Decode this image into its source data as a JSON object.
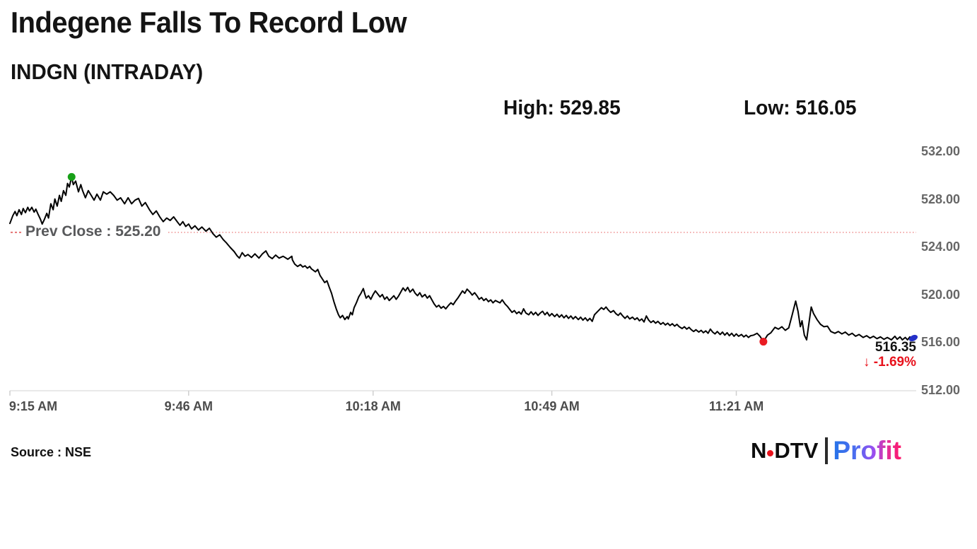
{
  "header": {
    "title": "Indegene Falls To Record Low",
    "subtitle": "INDGN (INTRADAY)",
    "high_label": "High: 529.85",
    "low_label": "Low: 516.05"
  },
  "chart_data": {
    "type": "line",
    "symbol": "INDGN",
    "session": "INTRADAY",
    "high": 529.85,
    "low": 516.05,
    "prev_close": 525.2,
    "prev_close_label": "Prev Close : 525.20",
    "last_price": 516.35,
    "last_price_label": "516.35",
    "change_label": "↓ -1.69%",
    "change_pct": -1.69,
    "line_color": "#000000",
    "prev_close_line_color": "#ee8f8f",
    "high_dot_color": "#18a018",
    "low_dot_color": "#e91c23",
    "last_marker_color": "#2430c8",
    "change_color": "#e8121c",
    "ylim": [
      512,
      532
    ],
    "y_axis": [
      {
        "value": 532,
        "label": "532.00"
      },
      {
        "value": 528,
        "label": "528.00"
      },
      {
        "value": 524,
        "label": "524.00"
      },
      {
        "value": 520,
        "label": "520.00"
      },
      {
        "value": 516,
        "label": "516.00"
      },
      {
        "value": 512,
        "label": "512.00"
      }
    ],
    "x_axis": [
      {
        "minute": 0,
        "label": "9:15 AM"
      },
      {
        "minute": 31,
        "label": "9:46 AM"
      },
      {
        "minute": 63,
        "label": "10:18 AM"
      },
      {
        "minute": 94,
        "label": "10:49 AM"
      },
      {
        "minute": 126,
        "label": "11:21 AM"
      }
    ],
    "x_minutes_range": [
      0,
      157
    ],
    "markers": {
      "high": {
        "minute": 10.7,
        "price": 529.85
      },
      "low": {
        "minute": 130.7,
        "price": 516.05
      },
      "last": {
        "minute": 156.7,
        "price": 516.35
      }
    },
    "series": [
      [
        0,
        525.95
      ],
      [
        0.5,
        526.6
      ],
      [
        0.9,
        526.95
      ],
      [
        1.2,
        526.6
      ],
      [
        1.6,
        527.1
      ],
      [
        2,
        526.7
      ],
      [
        2.3,
        527.2
      ],
      [
        2.7,
        526.85
      ],
      [
        3.1,
        527.3
      ],
      [
        3.4,
        527
      ],
      [
        3.8,
        527.3
      ],
      [
        4.2,
        526.9
      ],
      [
        4.5,
        527.15
      ],
      [
        4.9,
        526.7
      ],
      [
        5.3,
        526.3
      ],
      [
        5.6,
        525.9
      ],
      [
        6,
        526.3
      ],
      [
        6.4,
        526.8
      ],
      [
        6.7,
        526.4
      ],
      [
        7.1,
        527.6
      ],
      [
        7.5,
        527.1
      ],
      [
        7.8,
        528
      ],
      [
        8.2,
        527.4
      ],
      [
        8.6,
        528.3
      ],
      [
        8.9,
        527.8
      ],
      [
        9.3,
        528.7
      ],
      [
        9.7,
        528.3
      ],
      [
        10,
        529.3
      ],
      [
        10.3,
        529
      ],
      [
        10.7,
        529.85
      ],
      [
        11,
        529.2
      ],
      [
        11.4,
        529.5
      ],
      [
        11.9,
        528.6
      ],
      [
        12.3,
        529.2
      ],
      [
        12.6,
        528.7
      ],
      [
        13.1,
        528.1
      ],
      [
        13.6,
        528.7
      ],
      [
        14.1,
        528.3
      ],
      [
        14.6,
        527.9
      ],
      [
        15.1,
        528.4
      ],
      [
        15.7,
        527.9
      ],
      [
        16.2,
        528.6
      ],
      [
        16.8,
        528.4
      ],
      [
        17.4,
        528.6
      ],
      [
        18,
        528.3
      ],
      [
        18.6,
        527.9
      ],
      [
        19.2,
        528.1
      ],
      [
        19.9,
        527.6
      ],
      [
        20.5,
        528.1
      ],
      [
        21.1,
        527.6
      ],
      [
        21.7,
        527.9
      ],
      [
        22.3,
        528.05
      ],
      [
        22.9,
        527.4
      ],
      [
        23.5,
        527.7
      ],
      [
        24.2,
        527.1
      ],
      [
        24.8,
        526.7
      ],
      [
        25.4,
        527
      ],
      [
        26,
        526.5
      ],
      [
        26.6,
        526.1
      ],
      [
        27.2,
        526.4
      ],
      [
        27.8,
        526.2
      ],
      [
        28.4,
        526.5
      ],
      [
        29.1,
        526.05
      ],
      [
        29.5,
        525.8
      ],
      [
        30,
        526.1
      ],
      [
        30.5,
        525.7
      ],
      [
        31,
        525.9
      ],
      [
        31.5,
        525.5
      ],
      [
        32.1,
        525.75
      ],
      [
        32.7,
        525.4
      ],
      [
        33.3,
        525.65
      ],
      [
        34,
        525.3
      ],
      [
        34.6,
        525.55
      ],
      [
        35.2,
        525.1
      ],
      [
        35.8,
        524.8
      ],
      [
        36.4,
        525
      ],
      [
        37,
        524.6
      ],
      [
        37.6,
        524.3
      ],
      [
        38.2,
        523.95
      ],
      [
        38.9,
        523.6
      ],
      [
        39.4,
        523.25
      ],
      [
        39.8,
        523.05
      ],
      [
        40.3,
        523.5
      ],
      [
        40.8,
        523.2
      ],
      [
        41.3,
        523.35
      ],
      [
        41.9,
        523.1
      ],
      [
        42.5,
        523.4
      ],
      [
        43.2,
        523.05
      ],
      [
        43.8,
        523.4
      ],
      [
        44.4,
        523.65
      ],
      [
        44.9,
        523.2
      ],
      [
        45.5,
        523
      ],
      [
        46.1,
        523.3
      ],
      [
        46.7,
        523.05
      ],
      [
        47.4,
        523.2
      ],
      [
        48.2,
        522.95
      ],
      [
        48.9,
        523.2
      ],
      [
        49,
        522.9
      ],
      [
        49.4,
        522.55
      ],
      [
        49.9,
        522.35
      ],
      [
        50.4,
        522.5
      ],
      [
        50.8,
        522.3
      ],
      [
        51.2,
        522.4
      ],
      [
        51.6,
        522.2
      ],
      [
        52,
        522.35
      ],
      [
        52.3,
        522.15
      ],
      [
        53,
        521.9
      ],
      [
        53.4,
        522.1
      ],
      [
        53.8,
        521.6
      ],
      [
        54.2,
        521.3
      ],
      [
        54.6,
        521
      ],
      [
        55,
        521.15
      ],
      [
        55.4,
        520.6
      ],
      [
        55.8,
        520.1
      ],
      [
        56.2,
        519.4
      ],
      [
        56.6,
        518.8
      ],
      [
        57,
        518.3
      ],
      [
        57.3,
        518.05
      ],
      [
        57.7,
        518.25
      ],
      [
        58.1,
        517.9
      ],
      [
        58.5,
        518.15
      ],
      [
        58.7,
        517.95
      ],
      [
        59.1,
        518.5
      ],
      [
        59.4,
        518.3
      ],
      [
        59.7,
        518.9
      ],
      [
        60.1,
        519.3
      ],
      [
        60.5,
        519.8
      ],
      [
        60.9,
        520.1
      ],
      [
        61.3,
        520.5
      ],
      [
        61.6,
        520
      ],
      [
        61.8,
        519.7
      ],
      [
        62.2,
        519.9
      ],
      [
        62.6,
        519.6
      ],
      [
        63,
        520
      ],
      [
        63.4,
        520.3
      ],
      [
        63.8,
        520.05
      ],
      [
        64.2,
        519.8
      ],
      [
        64.6,
        520
      ],
      [
        65,
        519.6
      ],
      [
        65.4,
        519.8
      ],
      [
        65.8,
        519.5
      ],
      [
        66.2,
        519.7
      ],
      [
        66.6,
        519.9
      ],
      [
        67,
        519.6
      ],
      [
        67.4,
        519.85
      ],
      [
        67.8,
        520.2
      ],
      [
        68.2,
        520.55
      ],
      [
        68.6,
        520.3
      ],
      [
        69,
        520.6
      ],
      [
        69.4,
        520.2
      ],
      [
        69.9,
        520.45
      ],
      [
        70.3,
        520.1
      ],
      [
        70.7,
        519.9
      ],
      [
        71.1,
        520.15
      ],
      [
        71.5,
        519.8
      ],
      [
        72,
        520
      ],
      [
        72.4,
        519.7
      ],
      [
        72.8,
        519.9
      ],
      [
        73.2,
        519.55
      ],
      [
        73.6,
        519.2
      ],
      [
        74,
        518.95
      ],
      [
        74.4,
        519.1
      ],
      [
        74.8,
        518.85
      ],
      [
        75.2,
        519
      ],
      [
        75.6,
        518.8
      ],
      [
        76.1,
        519.1
      ],
      [
        76.5,
        519.3
      ],
      [
        76.9,
        519.15
      ],
      [
        77.3,
        519.45
      ],
      [
        77.7,
        519.7
      ],
      [
        78.1,
        520
      ],
      [
        78.5,
        520.3
      ],
      [
        78.9,
        520.1
      ],
      [
        79.3,
        520.45
      ],
      [
        79.8,
        520.2
      ],
      [
        80.2,
        519.95
      ],
      [
        80.6,
        520.15
      ],
      [
        81,
        519.9
      ],
      [
        81.4,
        519.6
      ],
      [
        81.8,
        519.75
      ],
      [
        82.2,
        519.5
      ],
      [
        82.6,
        519.65
      ],
      [
        83,
        519.4
      ],
      [
        83.4,
        519.55
      ],
      [
        83.8,
        519.3
      ],
      [
        84.2,
        519.5
      ],
      [
        85,
        519.3
      ],
      [
        85.4,
        519.55
      ],
      [
        85.9,
        519.2
      ],
      [
        86.3,
        519
      ],
      [
        86.7,
        518.75
      ],
      [
        87.1,
        518.5
      ],
      [
        87.5,
        518.65
      ],
      [
        87.9,
        518.4
      ],
      [
        88.3,
        518.55
      ],
      [
        88.7,
        518.35
      ],
      [
        89.1,
        518.8
      ],
      [
        89.5,
        518.45
      ],
      [
        90,
        518.3
      ],
      [
        90.4,
        518.55
      ],
      [
        90.8,
        518.3
      ],
      [
        91.2,
        518.5
      ],
      [
        91.6,
        518.25
      ],
      [
        92,
        518.45
      ],
      [
        92.4,
        518.6
      ],
      [
        92.8,
        518.3
      ],
      [
        93.2,
        518.5
      ],
      [
        93.6,
        518.2
      ],
      [
        94,
        518.4
      ],
      [
        94.5,
        518.15
      ],
      [
        94.9,
        518.35
      ],
      [
        95.3,
        518.1
      ],
      [
        95.7,
        518.3
      ],
      [
        96.1,
        518.05
      ],
      [
        96.5,
        518.25
      ],
      [
        96.9,
        518
      ],
      [
        97.3,
        518.2
      ],
      [
        97.7,
        517.95
      ],
      [
        98.1,
        518.15
      ],
      [
        98.6,
        517.9
      ],
      [
        99,
        518.1
      ],
      [
        99.4,
        517.85
      ],
      [
        99.8,
        518.05
      ],
      [
        100.2,
        517.8
      ],
      [
        100.6,
        518
      ],
      [
        101,
        517.75
      ],
      [
        101.4,
        518.3
      ],
      [
        101.8,
        518.5
      ],
      [
        102.2,
        518.7
      ],
      [
        102.6,
        518.9
      ],
      [
        103,
        518.75
      ],
      [
        103.4,
        518.95
      ],
      [
        103.8,
        518.7
      ],
      [
        104.2,
        518.5
      ],
      [
        104.7,
        518.65
      ],
      [
        105.1,
        518.4
      ],
      [
        105.5,
        518.25
      ],
      [
        105.9,
        518.45
      ],
      [
        106.3,
        518.2
      ],
      [
        106.7,
        518
      ],
      [
        107.1,
        518.2
      ],
      [
        107.5,
        517.95
      ],
      [
        108,
        518.1
      ],
      [
        108.4,
        517.9
      ],
      [
        108.8,
        518.05
      ],
      [
        109.2,
        517.8
      ],
      [
        109.6,
        517.95
      ],
      [
        110,
        517.7
      ],
      [
        110.4,
        518.2
      ],
      [
        110.8,
        517.85
      ],
      [
        111.2,
        517.65
      ],
      [
        111.6,
        517.8
      ],
      [
        112,
        517.6
      ],
      [
        112.4,
        517.75
      ],
      [
        112.9,
        517.5
      ],
      [
        113.3,
        517.65
      ],
      [
        113.7,
        517.45
      ],
      [
        114.1,
        517.6
      ],
      [
        114.5,
        517.4
      ],
      [
        114.9,
        517.55
      ],
      [
        115.3,
        517.35
      ],
      [
        115.7,
        517.5
      ],
      [
        116.1,
        517.3
      ],
      [
        116.6,
        517.15
      ],
      [
        117,
        517.3
      ],
      [
        117.4,
        517.1
      ],
      [
        117.8,
        517.25
      ],
      [
        118.2,
        517.05
      ],
      [
        118.6,
        516.9
      ],
      [
        119,
        517.05
      ],
      [
        119.5,
        516.85
      ],
      [
        119.9,
        517
      ],
      [
        120.3,
        516.8
      ],
      [
        120.7,
        516.95
      ],
      [
        121.1,
        516.75
      ],
      [
        121.5,
        517.1
      ],
      [
        121.9,
        516.85
      ],
      [
        122.3,
        516.7
      ],
      [
        122.7,
        516.9
      ],
      [
        123.2,
        516.65
      ],
      [
        123.6,
        516.85
      ],
      [
        124,
        516.6
      ],
      [
        124.4,
        516.8
      ],
      [
        124.8,
        516.55
      ],
      [
        125.2,
        516.75
      ],
      [
        125.6,
        516.5
      ],
      [
        126,
        516.7
      ],
      [
        126.4,
        516.5
      ],
      [
        126.9,
        516.65
      ],
      [
        127.3,
        516.45
      ],
      [
        127.7,
        516.6
      ],
      [
        128.1,
        516.4
      ],
      [
        128.5,
        516.55
      ],
      [
        129,
        516.6
      ],
      [
        129.6,
        516.75
      ],
      [
        130.1,
        516.5
      ],
      [
        130.7,
        516.05
      ],
      [
        131.4,
        516.6
      ],
      [
        132,
        516.8
      ],
      [
        132.7,
        517.25
      ],
      [
        133.3,
        517.1
      ],
      [
        133.9,
        517.3
      ],
      [
        134.5,
        517
      ],
      [
        135.1,
        517.2
      ],
      [
        135.7,
        518.3
      ],
      [
        136.3,
        519.45
      ],
      [
        136.7,
        518.6
      ],
      [
        137.1,
        517.3
      ],
      [
        137.4,
        517.8
      ],
      [
        137.8,
        516.6
      ],
      [
        138.2,
        516.2
      ],
      [
        138.6,
        517.6
      ],
      [
        139,
        518.95
      ],
      [
        139.4,
        518.4
      ],
      [
        140,
        517.9
      ],
      [
        140.6,
        517.5
      ],
      [
        141.2,
        517.3
      ],
      [
        141.8,
        517.35
      ],
      [
        142.4,
        516.9
      ],
      [
        143.1,
        516.75
      ],
      [
        143.7,
        516.9
      ],
      [
        144.3,
        516.7
      ],
      [
        144.9,
        516.85
      ],
      [
        145.5,
        516.6
      ],
      [
        146.1,
        516.75
      ],
      [
        146.7,
        516.5
      ],
      [
        147.3,
        516.65
      ],
      [
        148,
        516.4
      ],
      [
        148.6,
        516.55
      ],
      [
        149.2,
        516.35
      ],
      [
        149.8,
        516.5
      ],
      [
        150.4,
        516.3
      ],
      [
        151,
        516.45
      ],
      [
        151.6,
        516.25
      ],
      [
        152.2,
        516.4
      ],
      [
        152.9,
        516.2
      ],
      [
        153.5,
        516.5
      ],
      [
        153.9,
        516.25
      ],
      [
        154.4,
        516.45
      ],
      [
        154.8,
        516.2
      ],
      [
        155.3,
        516.4
      ],
      [
        155.7,
        516.2
      ],
      [
        156.1,
        516.45
      ],
      [
        156.4,
        516.25
      ],
      [
        156.7,
        516.35
      ]
    ]
  },
  "footer": {
    "source": "Source : NSE",
    "logo": {
      "ndtv_n": "N",
      "ndtv_rest": "DTV",
      "profit": "Profit"
    }
  }
}
